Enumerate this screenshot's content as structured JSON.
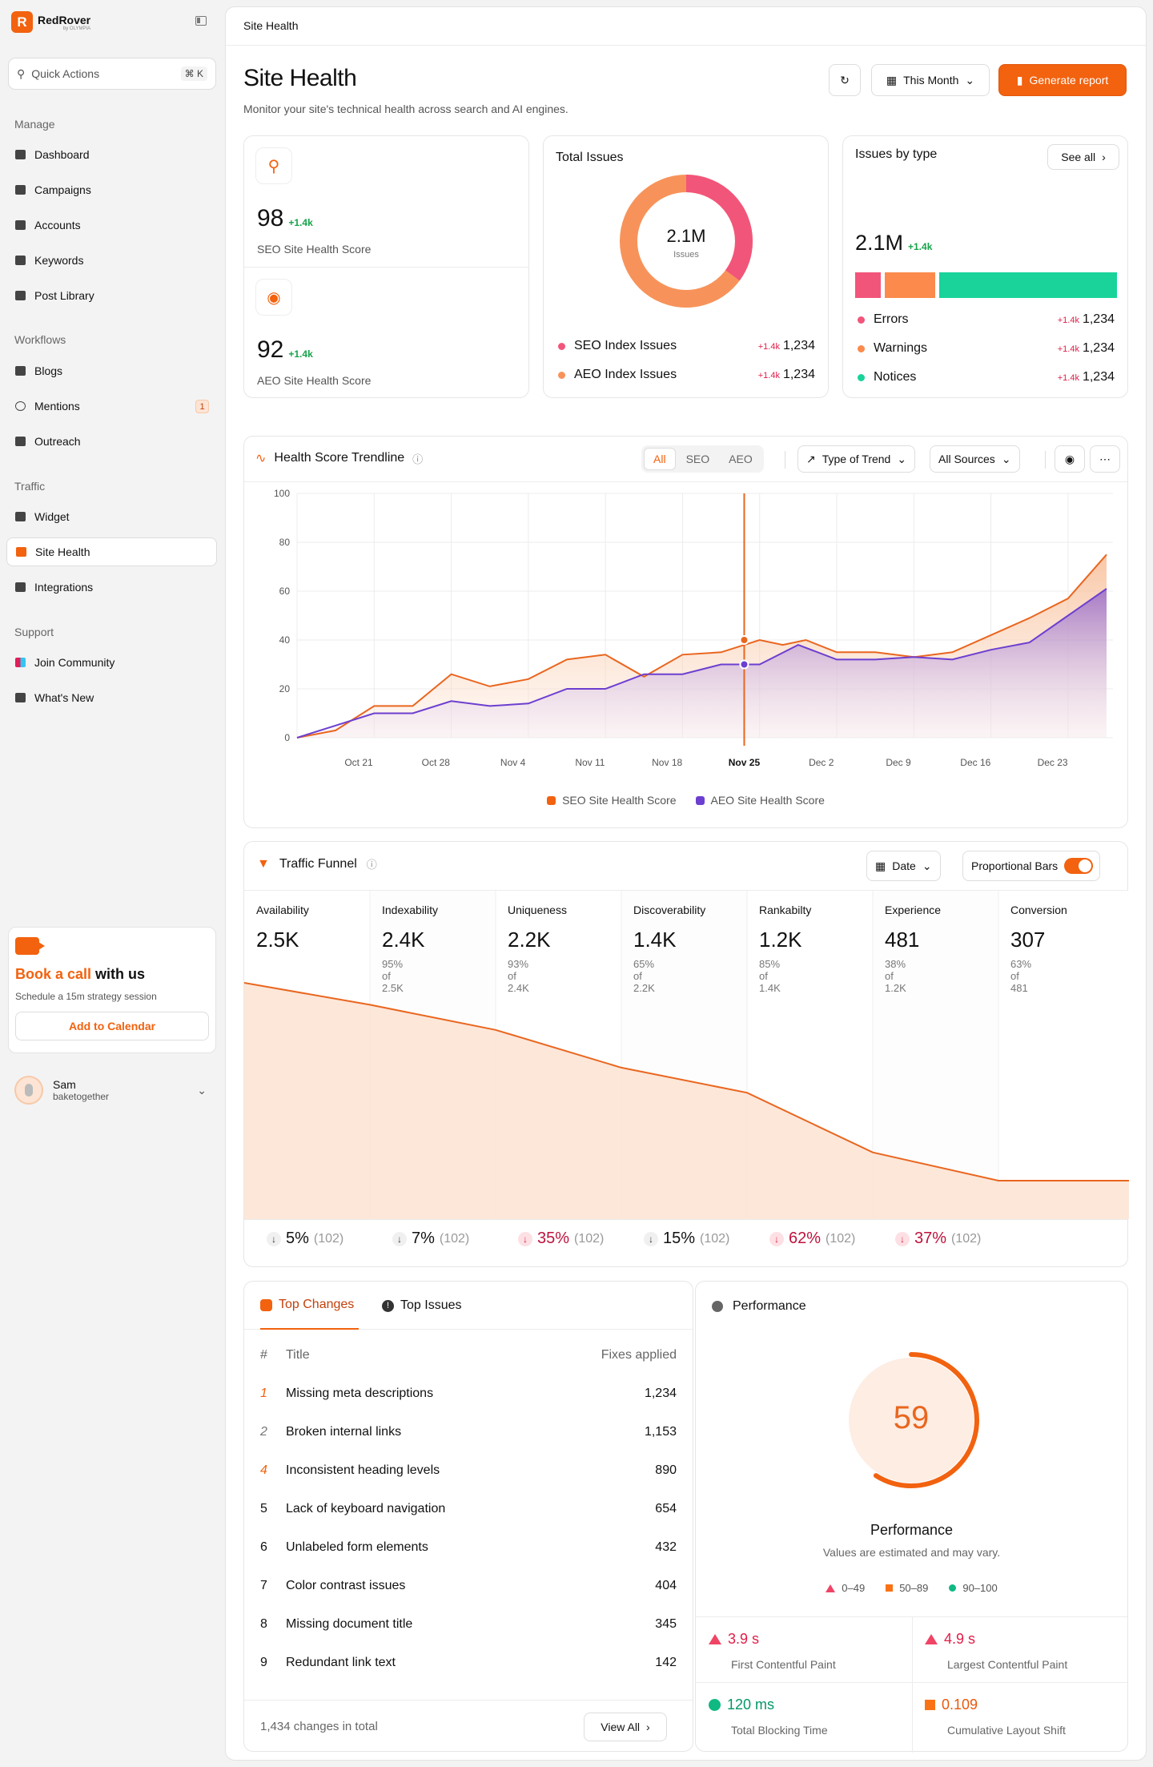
{
  "brand": {
    "name": "RedRover",
    "sub": "by OLYMPIA",
    "mark": "R"
  },
  "sidebar": {
    "quick_actions": "Quick Actions",
    "shortcut": "⌘ K",
    "manage_title": "Manage",
    "manage": [
      "Dashboard",
      "Campaigns",
      "Accounts",
      "Keywords",
      "Post Library"
    ],
    "workflows_title": "Workflows",
    "workflows": [
      "Blogs",
      "Mentions",
      "Outreach"
    ],
    "mentions_badge": "1",
    "traffic_title": "Traffic",
    "traffic": [
      "Widget",
      "Site Health",
      "Integrations"
    ],
    "support_title": "Support",
    "support": [
      "Join Community",
      "What's New"
    ]
  },
  "promo": {
    "title_accent": "Book a call",
    "title_rest": " with us",
    "subtitle": "Schedule a 15m strategy session",
    "button": "Add to Calendar"
  },
  "user": {
    "name": "Sam",
    "handle": "baketogether"
  },
  "header": {
    "breadcrumb": "Site Health",
    "title": "Site Health",
    "subtitle": "Monitor your site's technical health across search and AI engines.",
    "period": "This Month",
    "generate": "Generate report"
  },
  "scores": {
    "seo": {
      "value": "98",
      "delta": "+1.4k",
      "label": "SEO Site Health Score"
    },
    "aeo": {
      "value": "92",
      "delta": "+1.4k",
      "label": "AEO Site Health Score"
    }
  },
  "total_issues": {
    "title": "Total Issues",
    "value": "2.1M",
    "unit": "Issues",
    "rows": [
      {
        "label": "SEO Index Issues",
        "delta": "+1.4k",
        "value": "1,234",
        "color": "#f2557a"
      },
      {
        "label": "AEO Index Issues",
        "delta": "+1.4k",
        "value": "1,234",
        "color": "#f7935a"
      }
    ],
    "donut": {
      "seo_share": 0.36,
      "aeo_share": 0.64
    }
  },
  "issues_by_type": {
    "title": "Issues by type",
    "see_all": "See all",
    "value": "2.1M",
    "delta": "+1.4k",
    "rows": [
      {
        "label": "Errors",
        "delta": "+1.4k",
        "value": "1,234",
        "color": "#f2557a",
        "share": 0.1
      },
      {
        "label": "Warnings",
        "delta": "+1.4k",
        "value": "1,234",
        "color": "#fb8a4c",
        "share": 0.2
      },
      {
        "label": "Notices",
        "delta": "+1.4k",
        "value": "1,234",
        "color": "#19d39a",
        "share": 0.7
      }
    ]
  },
  "trend": {
    "title": "Health Score Trendline",
    "segments": [
      "All",
      "SEO",
      "AEO"
    ],
    "type_dropdown": "Type of Trend",
    "sources_dropdown": "All Sources",
    "legend": [
      "SEO Site Health Score",
      "AEO Site Health Score"
    ]
  },
  "chart_data": {
    "type": "area",
    "x": [
      "Oct 21",
      "Oct 28",
      "Nov 4",
      "Nov 11",
      "Nov 18",
      "Nov 25",
      "Dec 2",
      "Dec 9",
      "Dec 16",
      "Dec 23"
    ],
    "ylim": [
      0,
      100
    ],
    "yticks": [
      0,
      20,
      40,
      60,
      80,
      100
    ],
    "highlight": "Nov 25",
    "series": [
      {
        "name": "SEO Site Health Score",
        "color": "#e9661f",
        "points": [
          [
            0,
            0
          ],
          [
            0.5,
            3
          ],
          [
            1,
            13
          ],
          [
            1.5,
            13
          ],
          [
            2,
            26
          ],
          [
            2.5,
            21
          ],
          [
            3,
            24
          ],
          [
            3.5,
            32
          ],
          [
            4,
            34
          ],
          [
            4.5,
            25
          ],
          [
            5,
            34
          ],
          [
            5.5,
            35
          ],
          [
            6,
            40
          ],
          [
            6.3,
            38
          ],
          [
            6.6,
            40
          ],
          [
            7,
            35
          ],
          [
            7.5,
            35
          ],
          [
            8,
            33
          ],
          [
            8.5,
            35
          ],
          [
            9,
            42
          ],
          [
            9.5,
            49
          ],
          [
            10,
            57
          ],
          [
            10.5,
            75
          ]
        ]
      },
      {
        "name": "AEO Site Health Score",
        "color": "#6d3fd0",
        "points": [
          [
            0,
            0
          ],
          [
            0.5,
            5
          ],
          [
            1,
            10
          ],
          [
            1.5,
            10
          ],
          [
            2,
            15
          ],
          [
            2.5,
            13
          ],
          [
            3,
            14
          ],
          [
            3.5,
            20
          ],
          [
            4,
            20
          ],
          [
            4.5,
            26
          ],
          [
            5,
            26
          ],
          [
            5.5,
            30
          ],
          [
            6,
            30
          ],
          [
            6.5,
            38
          ],
          [
            7,
            32
          ],
          [
            7.5,
            32
          ],
          [
            8,
            33
          ],
          [
            8.5,
            32
          ],
          [
            9,
            36
          ],
          [
            9.5,
            39
          ],
          [
            10,
            50
          ],
          [
            10.5,
            61
          ]
        ]
      }
    ]
  },
  "funnel": {
    "title": "Traffic Funnel",
    "date": "Date",
    "toggle": "Proportional Bars",
    "stages": [
      {
        "name": "Availability",
        "value": "2.5K",
        "sub": "",
        "level": 0.63
      },
      {
        "name": "Indexability",
        "value": "2.4K",
        "sub": "95% of 2.5K",
        "level": 0.56
      },
      {
        "name": "Uniqueness",
        "value": "2.2K",
        "sub": "93% of 2.4K",
        "level": 0.48
      },
      {
        "name": "Discoverability",
        "value": "1.4K",
        "sub": "65% of 2.2K",
        "level": 0.36
      },
      {
        "name": "Rankabilty",
        "value": "1.2K",
        "sub": "85% of 1.4K",
        "level": 0.28
      },
      {
        "name": "Experience",
        "value": "481",
        "sub": "38% of 1.2K",
        "level": 0.09
      },
      {
        "name": "Conversion",
        "value": "307",
        "sub": "63% of 481",
        "level": 0.0
      }
    ],
    "drops": [
      {
        "pct": "5%",
        "count": "(102)",
        "severe": false
      },
      {
        "pct": "7%",
        "count": "(102)",
        "severe": false
      },
      {
        "pct": "35%",
        "count": "(102)",
        "severe": true
      },
      {
        "pct": "15%",
        "count": "(102)",
        "severe": false
      },
      {
        "pct": "62%",
        "count": "(102)",
        "severe": true
      },
      {
        "pct": "37%",
        "count": "(102)",
        "severe": true
      }
    ]
  },
  "changes": {
    "tabs": [
      "Top Changes",
      "Top Issues"
    ],
    "col_num": "#",
    "col_title": "Title",
    "col_fixes": "Fixes applied",
    "rows": [
      {
        "n": "1",
        "title": "Missing meta descriptions",
        "fixes": "1,234"
      },
      {
        "n": "2",
        "title": "Broken internal links",
        "fixes": "1,153"
      },
      {
        "n": "4",
        "title": "Inconsistent heading levels",
        "fixes": "890"
      },
      {
        "n": "5",
        "title": "Lack of keyboard navigation",
        "fixes": "654"
      },
      {
        "n": "6",
        "title": "Unlabeled form elements",
        "fixes": "432"
      },
      {
        "n": "7",
        "title": "Color contrast issues",
        "fixes": "404"
      },
      {
        "n": "8",
        "title": "Missing document title",
        "fixes": "345"
      },
      {
        "n": "9",
        "title": "Redundant link text",
        "fixes": "142"
      }
    ],
    "footer": "1,434 changes in total",
    "view_all": "View All"
  },
  "performance": {
    "title": "Performance",
    "score": "59",
    "score_fraction": 0.59,
    "label": "Performance",
    "note": "Values are estimated and may vary.",
    "ranges": [
      "0–49",
      "50–89",
      "90–100"
    ],
    "metrics": [
      {
        "value": "3.9 s",
        "label": "First Contentful Paint",
        "kind": "poor",
        "color": "#e11d48"
      },
      {
        "value": "4.9 s",
        "label": "Largest Contentful Paint",
        "kind": "poor",
        "color": "#e11d48"
      },
      {
        "value": "120 ms",
        "label": "Total Blocking Time",
        "kind": "good",
        "color": "#059669"
      },
      {
        "value": "0.109",
        "label": "Cumulative Layout Shift",
        "kind": "average",
        "color": "#ea580c"
      }
    ]
  }
}
